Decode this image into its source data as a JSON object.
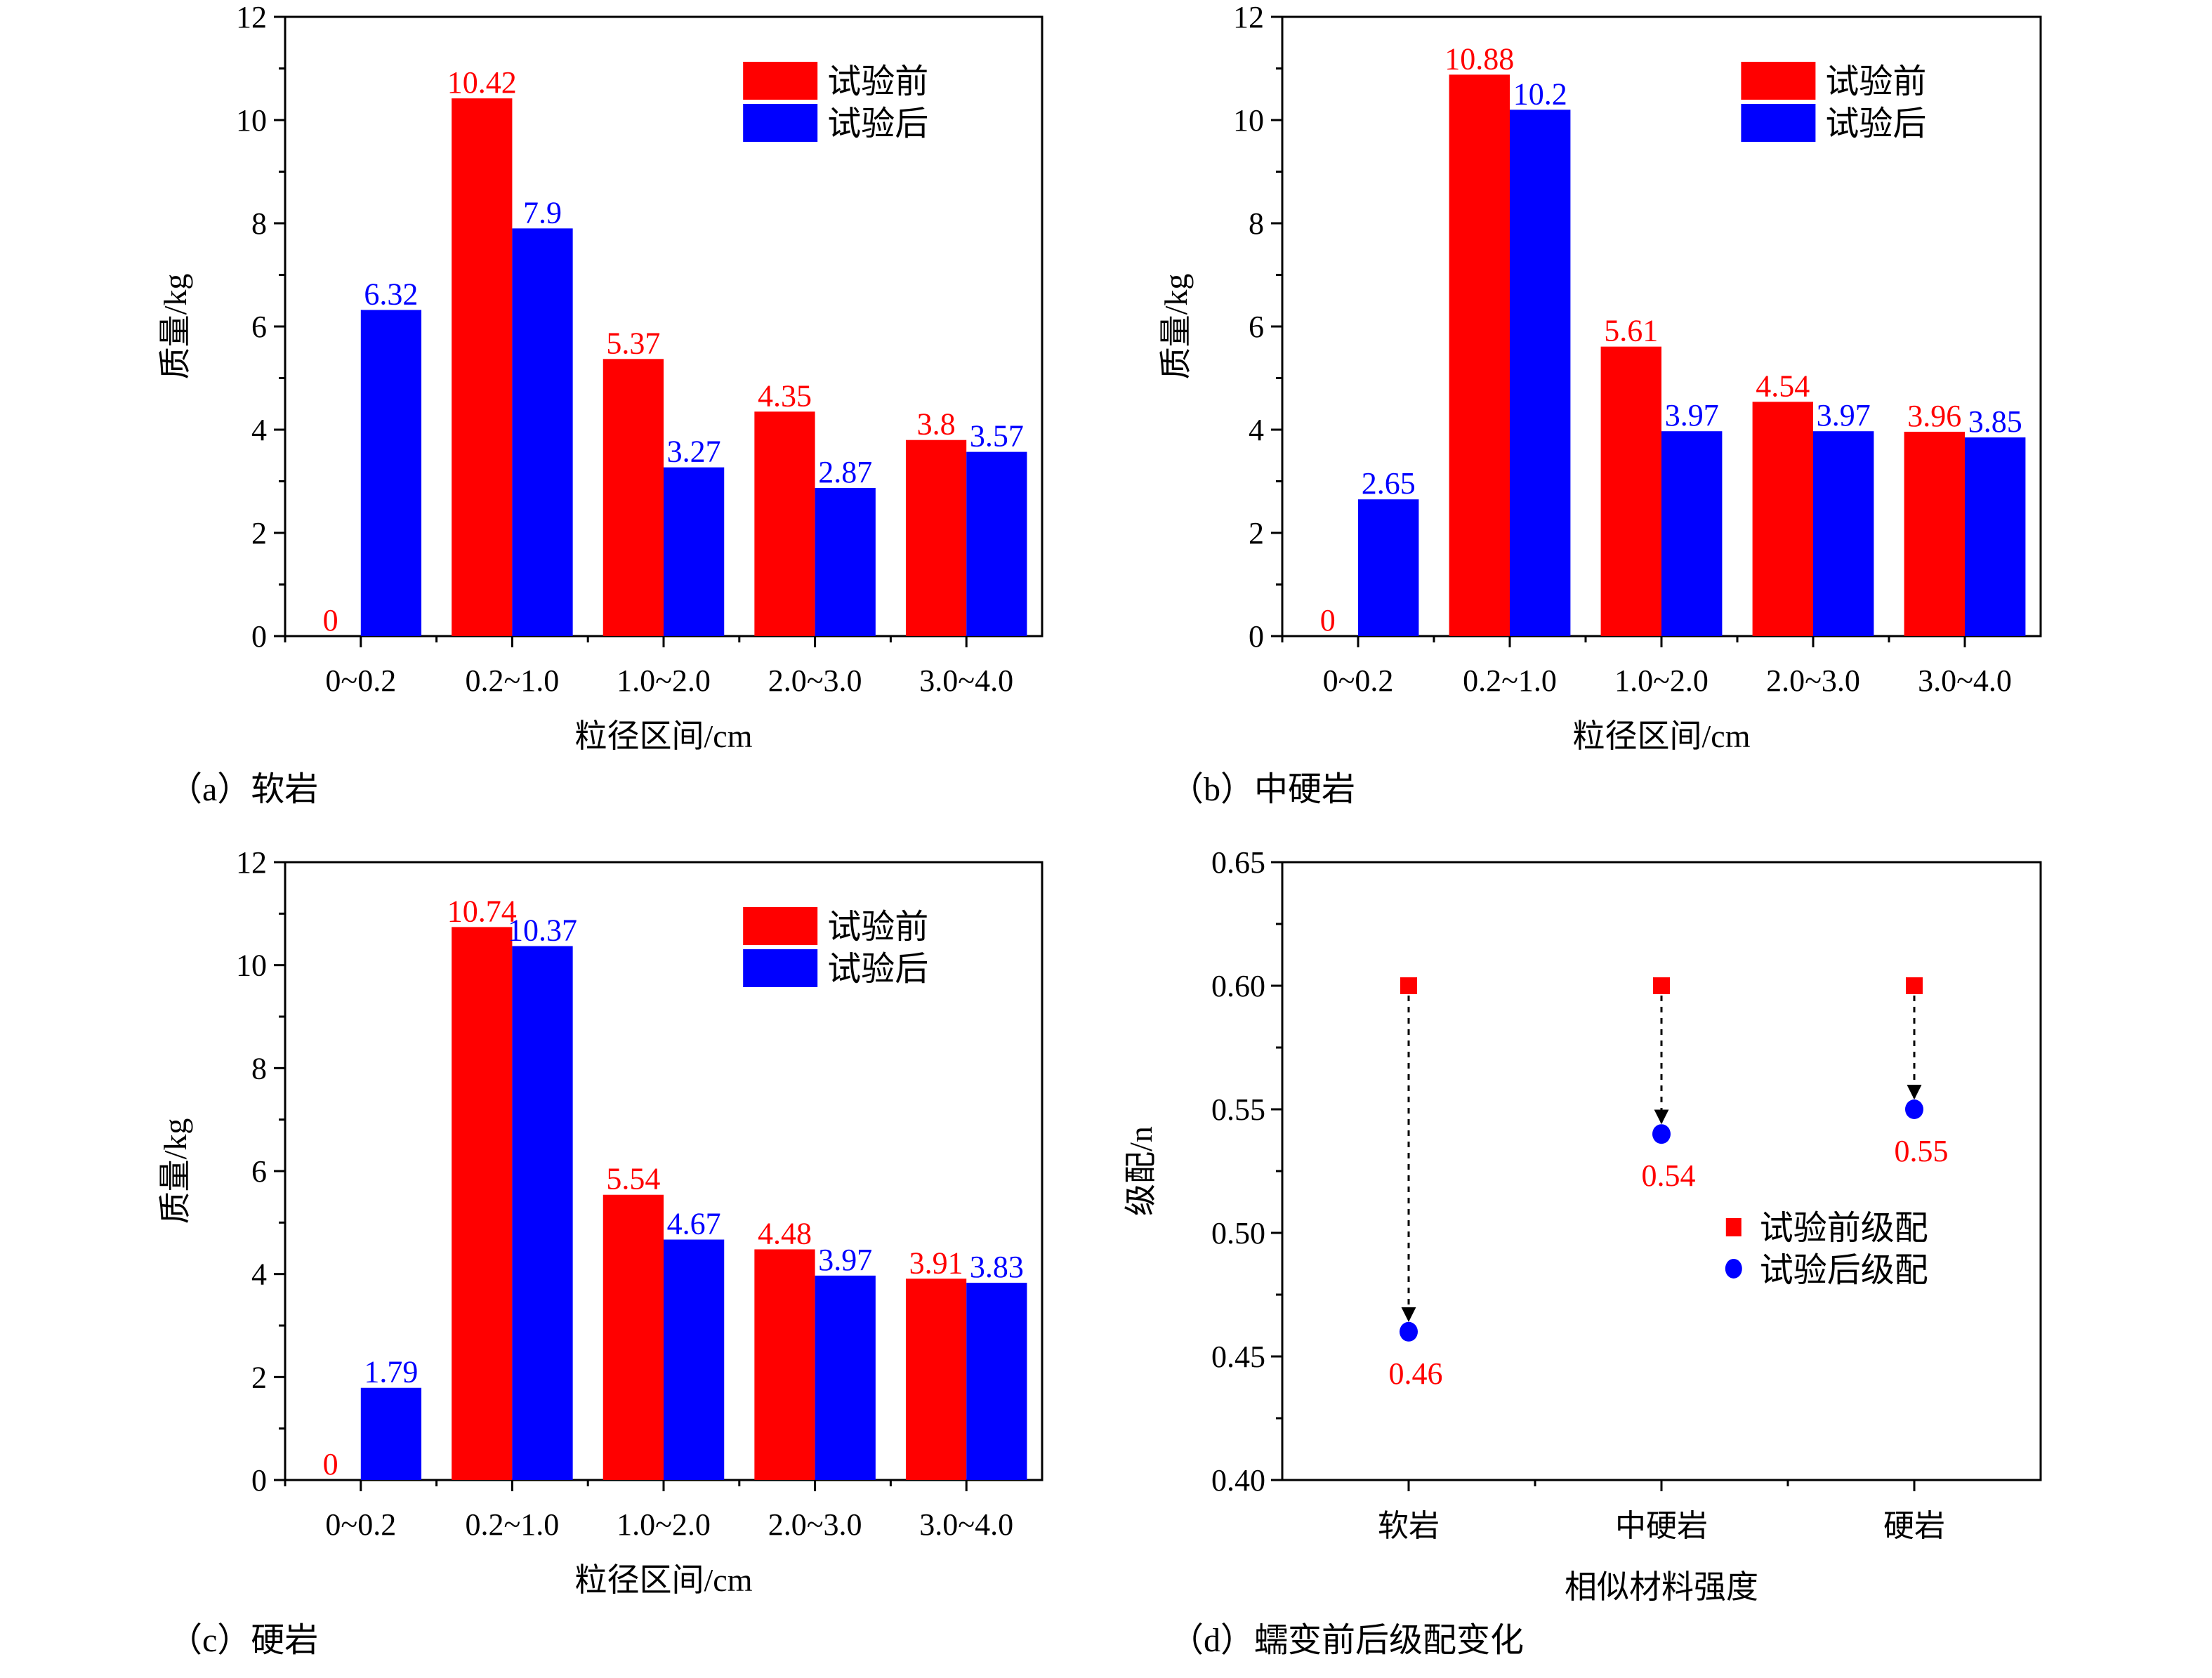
{
  "colors": {
    "before": "#ff0000",
    "after": "#0000ff",
    "axis": "#000000",
    "arrow": "#000000"
  },
  "chart_data": [
    {
      "id": "a",
      "type": "bar",
      "caption": "（a）软岩",
      "title": "",
      "xlabel": "粒径区间/cm",
      "ylabel": "质量/kg",
      "ylim": [
        0,
        12
      ],
      "yticks": [
        "0",
        "2",
        "4",
        "6",
        "8",
        "10",
        "12"
      ],
      "categories": [
        "0~0.2",
        "0.2~1.0",
        "1.0~2.0",
        "2.0~3.0",
        "3.0~4.0"
      ],
      "legend_position": "top-right",
      "series": [
        {
          "name": "试验前",
          "color": "#ff0000",
          "values": [
            0,
            10.42,
            5.37,
            4.35,
            3.8
          ],
          "labels": [
            "0",
            "10.42",
            "5.37",
            "4.35",
            "3.8"
          ]
        },
        {
          "name": "试验后",
          "color": "#0000ff",
          "values": [
            6.32,
            7.9,
            3.27,
            2.87,
            3.57
          ],
          "labels": [
            "6.32",
            "7.9",
            "3.27",
            "2.87",
            "3.57"
          ]
        }
      ]
    },
    {
      "id": "b",
      "type": "bar",
      "caption": "（b）中硬岩",
      "title": "",
      "xlabel": "粒径区间/cm",
      "ylabel": "质量/kg",
      "ylim": [
        0,
        12
      ],
      "yticks": [
        "0",
        "2",
        "4",
        "6",
        "8",
        "10",
        "12"
      ],
      "categories": [
        "0~0.2",
        "0.2~1.0",
        "1.0~2.0",
        "2.0~3.0",
        "3.0~4.0"
      ],
      "legend_position": "top-right",
      "series": [
        {
          "name": "试验前",
          "color": "#ff0000",
          "values": [
            0,
            10.88,
            5.61,
            4.54,
            3.96
          ],
          "labels": [
            "0",
            "10.88",
            "5.61",
            "4.54",
            "3.96"
          ]
        },
        {
          "name": "试验后",
          "color": "#0000ff",
          "values": [
            2.65,
            10.2,
            3.97,
            3.97,
            3.85
          ],
          "labels": [
            "2.65",
            "10.2",
            "3.97",
            "3.97",
            "3.85"
          ]
        }
      ]
    },
    {
      "id": "c",
      "type": "bar",
      "caption": "（c）硬岩",
      "title": "",
      "xlabel": "粒径区间/cm",
      "ylabel": "质量/kg",
      "ylim": [
        0,
        12
      ],
      "yticks": [
        "0",
        "2",
        "4",
        "6",
        "8",
        "10",
        "12"
      ],
      "categories": [
        "0~0.2",
        "0.2~1.0",
        "1.0~2.0",
        "2.0~3.0",
        "3.0~4.0"
      ],
      "legend_position": "top-right",
      "series": [
        {
          "name": "试验前",
          "color": "#ff0000",
          "values": [
            0,
            10.74,
            5.54,
            4.48,
            3.91
          ],
          "labels": [
            "0",
            "10.74",
            "5.54",
            "4.48",
            "3.91"
          ]
        },
        {
          "name": "试验后",
          "color": "#0000ff",
          "values": [
            1.79,
            10.37,
            4.67,
            3.97,
            3.83
          ],
          "labels": [
            "1.79",
            "10.37",
            "4.67",
            "3.97",
            "3.83"
          ]
        }
      ]
    },
    {
      "id": "d",
      "type": "scatter",
      "caption": "（d）蠕变前后级配变化",
      "title": "",
      "xlabel": "相似材料强度",
      "ylabel": "级配/n",
      "ylim": [
        0.4,
        0.65
      ],
      "yticks": [
        "0.40",
        "0.45",
        "0.50",
        "0.55",
        "0.60",
        "0.65"
      ],
      "categories": [
        "软岩",
        "中硬岩",
        "硬岩"
      ],
      "legend_position": "center-right",
      "series": [
        {
          "name": "试验前级配",
          "marker": "square",
          "color": "#ff0000",
          "values": [
            0.6,
            0.6,
            0.6
          ]
        },
        {
          "name": "试验后级配",
          "marker": "circle",
          "color": "#0000ff",
          "values": [
            0.46,
            0.54,
            0.55
          ],
          "labels": [
            "0.46",
            "0.54",
            "0.55"
          ]
        }
      ],
      "annotations": "dashed arrows from before to after values"
    }
  ]
}
